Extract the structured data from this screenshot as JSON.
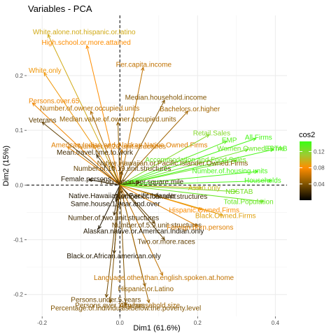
{
  "chart_data": {
    "type": "pca_variable_arrows",
    "title": "Variables - PCA",
    "xlabel": "Dim1 (61.6%)",
    "ylabel": "Dim2 (15%)",
    "xlim": [
      -0.24,
      0.43
    ],
    "ylim": [
      -0.24,
      0.31
    ],
    "x_ticks": [
      -0.2,
      0.0,
      0.2,
      0.4
    ],
    "x_tick_labels": [
      "-0.2",
      "0.0",
      "0.2",
      "0.4"
    ],
    "y_ticks": [
      -0.2,
      -0.1,
      0.0,
      0.1,
      0.2
    ],
    "y_tick_labels": [
      "-0.2",
      "-0.1",
      "0.0",
      "0.1",
      "0.2"
    ],
    "grid": true,
    "reference_lines": {
      "x": 0,
      "y": 0,
      "style": "dashed"
    },
    "legend": {
      "title": "cos2",
      "position": "right",
      "ticks": [
        0.04,
        0.08,
        0.12
      ],
      "tick_labels": [
        "0.04",
        "0.08",
        "0.12"
      ],
      "range": [
        0.0,
        0.145
      ],
      "colors": [
        "#000000",
        "#8b5a00",
        "#ff8c00",
        "#9acd32",
        "#39ff14"
      ]
    },
    "variables": [
      {
        "name": "White.alone.not.hispanic.or.latino",
        "x": -0.185,
        "y": 0.275,
        "cos2": 0.095
      },
      {
        "name": "High.school.or.more.attained",
        "x": -0.085,
        "y": 0.255,
        "cos2": 0.08
      },
      {
        "name": "Per.capita.income",
        "x": 0.06,
        "y": 0.215,
        "cos2": 0.06
      },
      {
        "name": "White.only",
        "x": -0.195,
        "y": 0.205,
        "cos2": 0.085
      },
      {
        "name": "Persons.over.65",
        "x": -0.225,
        "y": 0.15,
        "cos2": 0.075
      },
      {
        "name": "Median.household.income",
        "x": 0.115,
        "y": 0.155,
        "cos2": 0.04
      },
      {
        "name": "Number.of.owner.occupied.units",
        "x": -0.075,
        "y": 0.135,
        "cos2": 0.055
      },
      {
        "name": "Bachelors.or.higher",
        "x": 0.175,
        "y": 0.135,
        "cos2": 0.05
      },
      {
        "name": "Median.value.of.owner.occupied.units",
        "x": -0.005,
        "y": 0.115,
        "cos2": 0.045
      },
      {
        "name": "Veterans",
        "x": -0.2,
        "y": 0.115,
        "cos2": 0.03
      },
      {
        "name": "All.Firms",
        "x": 0.35,
        "y": 0.085,
        "cos2": 0.14
      },
      {
        "name": "Retail.Sales",
        "x": 0.23,
        "y": 0.092,
        "cos2": 0.12
      },
      {
        "name": "EMP",
        "x": 0.275,
        "y": 0.08,
        "cos2": 0.135
      },
      {
        "name": "Women.Owned.Firms",
        "x": 0.33,
        "y": 0.065,
        "cos2": 0.13
      },
      {
        "name": "ESTAB",
        "x": 0.395,
        "y": 0.065,
        "cos2": 0.14
      },
      {
        "name": "American.Indian.and.Alaskan.Native.Owned.Firms",
        "x": -0.135,
        "y": 0.07,
        "cos2": 0.07
      },
      {
        "name": "Number.of.20.unit.structures",
        "x": 0.005,
        "y": 0.065,
        "cos2": 0.065
      },
      {
        "name": "Mean.travel.time.to.work",
        "x": -0.06,
        "y": 0.055,
        "cos2": 0.02
      },
      {
        "name": "Accommodation.and.Food.Sales",
        "x": 0.3,
        "y": 0.045,
        "cos2": 0.13
      },
      {
        "name": "Native.Hawaiian.or.Pacific.Islander.Owned.Firms",
        "x": -0.02,
        "y": 0.035,
        "cos2": 0.04
      },
      {
        "name": "Number.of.10.19.unit.structures",
        "x": 0.005,
        "y": 0.025,
        "cos2": 0.03
      },
      {
        "name": "Number.of.housing.units",
        "x": 0.355,
        "y": 0.025,
        "cos2": 0.14
      },
      {
        "name": "Households",
        "x": 0.39,
        "y": 0.008,
        "cos2": 0.14
      },
      {
        "name": "Female.persons",
        "x": -0.08,
        "y": 0.01,
        "cos2": 0.01
      },
      {
        "name": "Population.per.square.mile",
        "x": 0.05,
        "y": 0.005,
        "cos2": 0.02
      },
      {
        "name": "Asian.only",
        "x": 0.21,
        "y": -0.005,
        "cos2": 0.1
      },
      {
        "name": "Native.Hawaiian.or.Pacific.Islander",
        "x": 0.005,
        "y": -0.015,
        "cos2": 0.01
      },
      {
        "name": "Number.of.four.unit.structures",
        "x": 0.1,
        "y": -0.02,
        "cos2": 0.02
      },
      {
        "name": "Same.house.1.year.and.over",
        "x": -0.01,
        "y": -0.03,
        "cos2": 0.01
      },
      {
        "name": "NESTAB",
        "x": 0.3,
        "y": -0.012,
        "cos2": 0.125
      },
      {
        "name": "Total.Population",
        "x": 0.37,
        "y": -0.03,
        "cos2": 0.13
      },
      {
        "name": "Hispanic.Owned.Firms",
        "x": 0.21,
        "y": -0.045,
        "cos2": 0.08
      },
      {
        "name": "Black.Owned.Firms",
        "x": 0.265,
        "y": -0.055,
        "cos2": 0.09
      },
      {
        "name": "Number.of.two.unit.structures",
        "x": -0.015,
        "y": -0.055,
        "cos2": 0.02
      },
      {
        "name": "Number.of.5.9.unit.structures",
        "x": 0.09,
        "y": -0.07,
        "cos2": 0.03
      },
      {
        "name": "Foreign.born.persons",
        "x": 0.2,
        "y": -0.075,
        "cos2": 0.07
      },
      {
        "name": "Alaskan.native.or.American.Indian.only",
        "x": -0.055,
        "y": -0.08,
        "cos2": 0.01
      },
      {
        "name": "Two.or.more.races",
        "x": 0.115,
        "y": -0.1,
        "cos2": 0.03
      },
      {
        "name": "Black.or.African.american.only",
        "x": -0.015,
        "y": -0.125,
        "cos2": 0.01
      },
      {
        "name": "Language.other.than.english.spoken.at.home",
        "x": 0.11,
        "y": -0.165,
        "cos2": 0.06
      },
      {
        "name": "Hispanic.or.Latino",
        "x": 0.065,
        "y": -0.185,
        "cos2": 0.045
      },
      {
        "name": "Persons.under.5.years",
        "x": -0.035,
        "y": -0.205,
        "cos2": 0.035
      },
      {
        "name": "Avg.household.size",
        "x": 0.075,
        "y": -0.215,
        "cos2": 0.05
      },
      {
        "name": "Persons.over.18.years",
        "x": -0.025,
        "y": -0.215,
        "cos2": 0.04
      },
      {
        "name": "Percentage.of.individuals.below.the.poverty.level",
        "x": 0.015,
        "y": -0.22,
        "cos2": 0.04
      }
    ]
  }
}
